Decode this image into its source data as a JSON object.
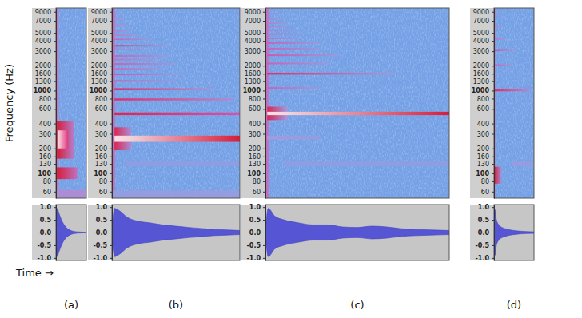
{
  "chart_data": [
    {
      "type": "spectrogram",
      "title": "(a)",
      "ylabel": "Frequency (Hz)",
      "xlabel": "Time →",
      "log": "y",
      "tick_labels": "y",
      "xlim": [
        0,
        1
      ],
      "ylim": [
        50,
        10000
      ],
      "yticks": [
        60,
        80,
        100,
        130,
        160,
        200,
        300,
        400,
        600,
        800,
        1000,
        1300,
        1600,
        2000,
        3000,
        4000,
        5000,
        7000,
        9000
      ],
      "zlim": [
        0,
        1
      ],
      "bands": [
        {
          "f": [
            50,
            10000
          ],
          "t": [
            0,
            0.1
          ],
          "level": [
            0.5,
            0.4
          ]
        },
        {
          "f": [
            150,
            430
          ],
          "t": [
            0.03,
            0.6
          ],
          "level": [
            0.85,
            0.45
          ]
        },
        {
          "f": [
            200,
            330
          ],
          "t": [
            0.05,
            0.4
          ],
          "level": [
            1,
            0.7
          ]
        },
        {
          "f": [
            85,
            118
          ],
          "t": [
            0.03,
            0.7
          ],
          "level": [
            0.85,
            0.5
          ]
        },
        {
          "f": [
            50,
            63
          ],
          "t": [
            0,
            1
          ],
          "level": [
            0.4,
            0.4
          ]
        }
      ],
      "waveform": {
        "x": [
          0,
          0.04,
          0.1,
          0.2,
          0.3,
          0.45,
          0.6,
          0.8,
          1
        ],
        "values": [
          0,
          0.95,
          0.75,
          0.45,
          0.25,
          0.1,
          0.04,
          0.02,
          0.01
        ],
        "ylim": [
          -1.1,
          1.1
        ],
        "yticks": [
          {
            "value": -1,
            "label": "-1.0"
          },
          {
            "value": -0.5,
            "label": "-0.5"
          },
          {
            "value": 0,
            "label": "0.0"
          },
          {
            "value": 0.5,
            "label": "0.5"
          },
          {
            "value": 1,
            "label": "1.0"
          }
        ]
      }
    },
    {
      "type": "spectrogram",
      "title": "(b)",
      "log": "y",
      "tick_labels": "y",
      "xlim": [
        0,
        1
      ],
      "ylim": [
        50,
        10000
      ],
      "yticks": [
        60,
        80,
        100,
        130,
        160,
        200,
        300,
        400,
        600,
        800,
        1000,
        1300,
        1600,
        2000,
        3000,
        4000,
        5000,
        7000,
        9000
      ],
      "zlim": [
        0,
        1
      ],
      "bands": [
        {
          "f": [
            50,
            10000
          ],
          "t": [
            0,
            0.025
          ],
          "level": [
            0.55,
            0.45
          ]
        },
        {
          "f": [
            190,
            360
          ],
          "t": [
            0.02,
            0.15
          ],
          "level": [
            0.8,
            0.4
          ]
        },
        {
          "f": [
            240,
            285
          ],
          "t": [
            0.02,
            1
          ],
          "level": [
            1,
            0.85
          ]
        },
        {
          "f": [
            505,
            545
          ],
          "t": [
            0.02,
            1
          ],
          "level": [
            0.8,
            0.6
          ]
        },
        {
          "f": [
            760,
            805
          ],
          "t": [
            0.02,
            0.95
          ],
          "level": [
            0.75,
            0.4
          ]
        },
        {
          "f": [
            1010,
            1070
          ],
          "t": [
            0.02,
            0.8
          ],
          "level": [
            0.75,
            0.35
          ]
        },
        {
          "f": [
            1280,
            1340
          ],
          "t": [
            0.02,
            0.5
          ],
          "level": [
            0.55,
            0.25
          ]
        },
        {
          "f": [
            1540,
            1610
          ],
          "t": [
            0.02,
            0.55
          ],
          "level": [
            0.6,
            0.3
          ]
        },
        {
          "f": [
            1800,
            1880
          ],
          "t": [
            0.02,
            0.4
          ],
          "level": [
            0.5,
            0.2
          ]
        },
        {
          "f": [
            2060,
            2150
          ],
          "t": [
            0.02,
            0.5
          ],
          "level": [
            0.55,
            0.25
          ]
        },
        {
          "f": [
            2330,
            2420
          ],
          "t": [
            0.02,
            0.35
          ],
          "level": [
            0.5,
            0.2
          ]
        },
        {
          "f": [
            2580,
            2680
          ],
          "t": [
            0.02,
            0.45
          ],
          "level": [
            0.55,
            0.25
          ]
        },
        {
          "f": [
            3080,
            3200
          ],
          "t": [
            0.02,
            0.3
          ],
          "level": [
            0.45,
            0.2
          ]
        },
        {
          "f": [
            3420,
            3560
          ],
          "t": [
            0.02,
            0.45
          ],
          "level": [
            0.75,
            0.35
          ]
        },
        {
          "f": [
            4100,
            4250
          ],
          "t": [
            0.02,
            0.3
          ],
          "level": [
            0.55,
            0.2
          ]
        },
        {
          "f": [
            4600,
            4780
          ],
          "t": [
            0.02,
            0.2
          ],
          "level": [
            0.45,
            0.2
          ]
        },
        {
          "f": [
            5200,
            5400
          ],
          "t": [
            0.02,
            0.15
          ],
          "level": [
            0.45,
            0.2
          ]
        },
        {
          "f": [
            6100,
            6350
          ],
          "t": [
            0.02,
            0.12
          ],
          "level": [
            0.4,
            0.2
          ]
        },
        {
          "f": [
            7100,
            7400
          ],
          "t": [
            0.02,
            0.1
          ],
          "level": [
            0.4,
            0.2
          ]
        },
        {
          "f": [
            8300,
            8600
          ],
          "t": [
            0.02,
            0.08
          ],
          "level": [
            0.4,
            0.2
          ]
        },
        {
          "f": [
            122,
            138
          ],
          "t": [
            0.1,
            1
          ],
          "level": [
            0.2,
            0.2
          ]
        },
        {
          "f": [
            50,
            62
          ],
          "t": [
            0,
            1
          ],
          "level": [
            0.25,
            0.25
          ]
        }
      ],
      "waveform": {
        "x": [
          0,
          0.02,
          0.06,
          0.12,
          0.2,
          0.3,
          0.4,
          0.5,
          0.6,
          0.7,
          0.8,
          0.9,
          1
        ],
        "values": [
          0,
          0.95,
          0.85,
          0.6,
          0.45,
          0.38,
          0.3,
          0.25,
          0.2,
          0.16,
          0.12,
          0.1,
          0.08
        ],
        "ylim": [
          -1.1,
          1.1
        ],
        "yticks": [
          {
            "value": -1,
            "label": "-1.0"
          },
          {
            "value": -0.5,
            "label": "-0.5"
          },
          {
            "value": 0,
            "label": "0.0"
          },
          {
            "value": 0.5,
            "label": "0.5"
          },
          {
            "value": 1,
            "label": "1.0"
          }
        ]
      }
    },
    {
      "type": "spectrogram",
      "title": "(c)",
      "log": "y",
      "tick_labels": "y",
      "xlim": [
        0,
        1
      ],
      "ylim": [
        50,
        10000
      ],
      "yticks": [
        60,
        80,
        100,
        130,
        160,
        200,
        300,
        400,
        600,
        800,
        1000,
        1300,
        1600,
        2000,
        3000,
        4000,
        5000,
        7000,
        9000
      ],
      "zlim": [
        0,
        1
      ],
      "bands": [
        {
          "f": [
            50,
            10000
          ],
          "t": [
            0,
            0.02
          ],
          "level": [
            0.55,
            0.45
          ]
        },
        {
          "f": [
            440,
            640
          ],
          "t": [
            0.01,
            0.12
          ],
          "level": [
            0.8,
            0.35
          ]
        },
        {
          "f": [
            505,
            555
          ],
          "t": [
            0.01,
            1
          ],
          "level": [
            1,
            0.85
          ]
        },
        {
          "f": [
            1040,
            1100
          ],
          "t": [
            0.01,
            0.3
          ],
          "level": [
            0.55,
            0.25
          ]
        },
        {
          "f": [
            1560,
            1650
          ],
          "t": [
            0.01,
            0.7
          ],
          "level": [
            0.75,
            0.35
          ]
        },
        {
          "f": [
            2080,
            2180
          ],
          "t": [
            0.01,
            0.35
          ],
          "level": [
            0.55,
            0.25
          ]
        },
        {
          "f": [
            2620,
            2740
          ],
          "t": [
            0.01,
            0.4
          ],
          "level": [
            0.6,
            0.25
          ]
        },
        {
          "f": [
            3150,
            3290
          ],
          "t": [
            0.01,
            0.3
          ],
          "level": [
            0.55,
            0.2
          ]
        },
        {
          "f": [
            3680,
            3840
          ],
          "t": [
            0.01,
            0.3
          ],
          "level": [
            0.55,
            0.2
          ]
        },
        {
          "f": [
            4200,
            4380
          ],
          "t": [
            0.01,
            0.2
          ],
          "level": [
            0.5,
            0.2
          ]
        },
        {
          "f": [
            4750,
            4950
          ],
          "t": [
            0.01,
            0.2
          ],
          "level": [
            0.5,
            0.2
          ]
        },
        {
          "f": [
            5300,
            5500
          ],
          "t": [
            0.01,
            0.18
          ],
          "level": [
            0.5,
            0.2
          ]
        },
        {
          "f": [
            5850,
            6100
          ],
          "t": [
            0.01,
            0.15
          ],
          "level": [
            0.45,
            0.2
          ]
        },
        {
          "f": [
            6400,
            6650
          ],
          "t": [
            0.01,
            0.12
          ],
          "level": [
            0.45,
            0.2
          ]
        },
        {
          "f": [
            7300,
            7600
          ],
          "t": [
            0.01,
            0.1
          ],
          "level": [
            0.45,
            0.2
          ]
        },
        {
          "f": [
            8400,
            8750
          ],
          "t": [
            0.01,
            0.08
          ],
          "level": [
            0.45,
            0.2
          ]
        },
        {
          "f": [
            255,
            285
          ],
          "t": [
            0.01,
            0.3
          ],
          "level": [
            0.35,
            0.2
          ]
        },
        {
          "f": [
            122,
            138
          ],
          "t": [
            0.1,
            1
          ],
          "level": [
            0.2,
            0.2
          ]
        }
      ],
      "waveform": {
        "x": [
          0,
          0.015,
          0.05,
          0.1,
          0.18,
          0.26,
          0.34,
          0.42,
          0.5,
          0.58,
          0.66,
          0.74,
          0.82,
          0.9,
          1
        ],
        "values": [
          0,
          0.95,
          0.65,
          0.5,
          0.38,
          0.3,
          0.3,
          0.22,
          0.2,
          0.25,
          0.22,
          0.15,
          0.12,
          0.1,
          0.08
        ],
        "ylim": [
          -1.1,
          1.1
        ],
        "yticks": [
          {
            "value": -1,
            "label": "-1.0"
          },
          {
            "value": -0.5,
            "label": "-0.5"
          },
          {
            "value": 0,
            "label": "0.0"
          },
          {
            "value": 0.5,
            "label": "0.5"
          },
          {
            "value": 1,
            "label": "1.0"
          }
        ]
      }
    },
    {
      "type": "spectrogram",
      "title": "(d)",
      "log": "y",
      "tick_labels": "y",
      "xlim": [
        0,
        1
      ],
      "ylim": [
        50,
        10000
      ],
      "yticks": [
        60,
        80,
        100,
        130,
        160,
        200,
        300,
        400,
        600,
        800,
        1000,
        1300,
        1600,
        2000,
        3000,
        4000,
        5000,
        7000,
        9000
      ],
      "zlim": [
        0,
        1
      ],
      "bands": [
        {
          "f": [
            50,
            10000
          ],
          "t": [
            0,
            0.03
          ],
          "level": [
            0.55,
            0.45
          ]
        },
        {
          "f": [
            75,
            120
          ],
          "t": [
            0.01,
            0.18
          ],
          "level": [
            0.85,
            0.4
          ]
        },
        {
          "f": [
            980,
            1040
          ],
          "t": [
            0.01,
            0.9
          ],
          "level": [
            0.75,
            0.4
          ]
        },
        {
          "f": [
            1980,
            2080
          ],
          "t": [
            0.01,
            0.45
          ],
          "level": [
            0.55,
            0.25
          ]
        },
        {
          "f": [
            3030,
            3170
          ],
          "t": [
            0.01,
            0.55
          ],
          "level": [
            0.7,
            0.35
          ]
        },
        {
          "f": [
            4150,
            4330
          ],
          "t": [
            0.01,
            0.3
          ],
          "level": [
            0.5,
            0.25
          ]
        },
        {
          "f": [
            5800,
            6050
          ],
          "t": [
            0.01,
            0.2
          ],
          "level": [
            0.45,
            0.2
          ]
        },
        {
          "f": [
            8200,
            8550
          ],
          "t": [
            0.01,
            0.15
          ],
          "level": [
            0.45,
            0.2
          ]
        },
        {
          "f": [
            122,
            138
          ],
          "t": [
            0.45,
            1
          ],
          "level": [
            0.25,
            0.25
          ]
        }
      ],
      "waveform": {
        "x": [
          0,
          0.02,
          0.06,
          0.12,
          0.2,
          0.3,
          0.45,
          0.6,
          0.8,
          1
        ],
        "values": [
          0,
          0.9,
          0.5,
          0.3,
          0.2,
          0.14,
          0.09,
          0.06,
          0.04,
          0.03
        ],
        "ylim": [
          -1.1,
          1.1
        ],
        "yticks": [
          {
            "value": -1,
            "label": "-1.0"
          },
          {
            "value": -0.5,
            "label": "-0.5"
          },
          {
            "value": 0,
            "label": "0.0"
          },
          {
            "value": 0.5,
            "label": "0.5"
          },
          {
            "value": 1,
            "label": "1.0"
          }
        ]
      }
    }
  ]
}
